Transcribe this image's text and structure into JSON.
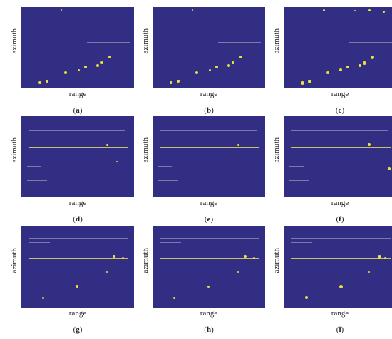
{
  "figure": {
    "colors": {
      "background": "#312e84",
      "line_bright": "#c8c06a",
      "line_dim": "#7d7aa8",
      "dot": "#e8e040"
    },
    "panels": [
      {
        "id": "a",
        "ylabel": "azimuth",
        "xlabel": "range",
        "caption_letter": "a"
      },
      {
        "id": "b",
        "ylabel": "azimuth",
        "xlabel": "range",
        "caption_letter": "b"
      },
      {
        "id": "c",
        "ylabel": "azimuth",
        "xlabel": "range",
        "caption_letter": "c"
      },
      {
        "id": "d",
        "ylabel": "azimuth",
        "xlabel": "range",
        "caption_letter": "d"
      },
      {
        "id": "e",
        "ylabel": "azimuth",
        "xlabel": "range",
        "caption_letter": "e"
      },
      {
        "id": "f",
        "ylabel": "azimuth",
        "xlabel": "range",
        "caption_letter": "f"
      },
      {
        "id": "g",
        "ylabel": "azimuth",
        "xlabel": "range",
        "caption_letter": "g"
      },
      {
        "id": "h",
        "ylabel": "azimuth",
        "xlabel": "range",
        "caption_letter": "h"
      },
      {
        "id": "i",
        "ylabel": "azimuth",
        "xlabel": "range",
        "caption_letter": "i"
      }
    ]
  }
}
